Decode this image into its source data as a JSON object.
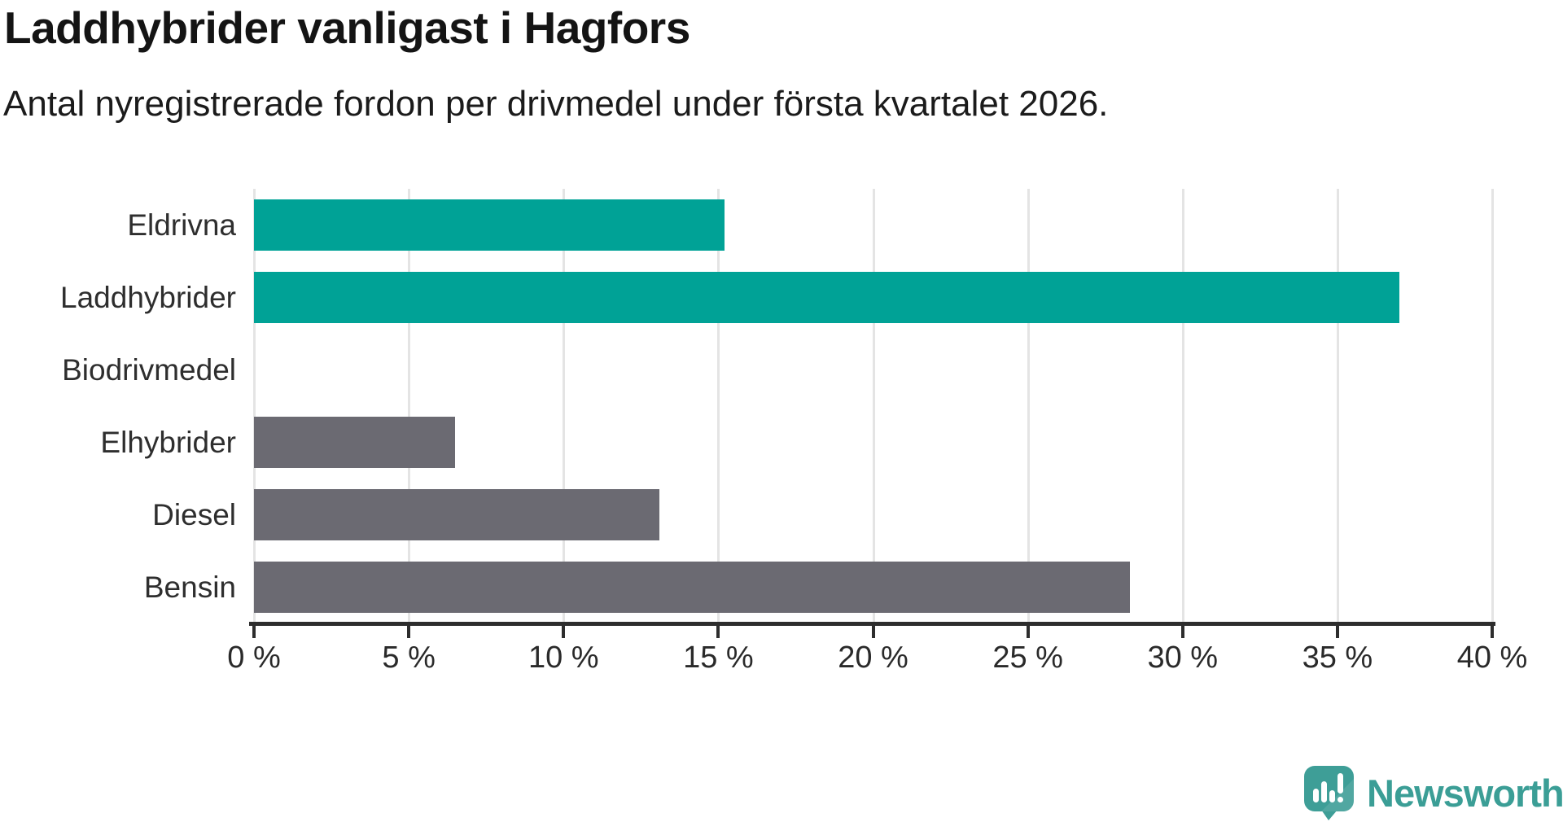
{
  "header": {
    "title": "Laddhybrider vanligast i Hagfors",
    "subtitle": "Antal nyregistrerade fordon per drivmedel under första kvartalet 2026."
  },
  "chart_data": {
    "type": "bar",
    "orientation": "horizontal",
    "title": "Laddhybrider vanligast i Hagfors",
    "subtitle": "Antal nyregistrerade fordon per drivmedel under första kvartalet 2026.",
    "categories": [
      "Eldrivna",
      "Laddhybrider",
      "Biodrivmedel",
      "Elhybrider",
      "Diesel",
      "Bensin"
    ],
    "values": [
      15.2,
      37.0,
      0,
      6.5,
      13.1,
      28.3
    ],
    "unit": "%",
    "series_colors": [
      "#00a296",
      "#00a296",
      "#00a296",
      "#6b6a72",
      "#6b6a72",
      "#6b6a72"
    ],
    "xlim": [
      0,
      40
    ],
    "x_tick_step": 5,
    "x_tick_labels": [
      "0 %",
      "5 %",
      "10 %",
      "15 %",
      "20 %",
      "25 %",
      "30 %",
      "35 %",
      "40 %"
    ],
    "grid": "vertical",
    "legend": "none",
    "highlight_color": "#00a296",
    "base_color": "#6b6a72"
  },
  "branding": {
    "logo_text": "Newsworthy",
    "logo_icon": "speech-bubble-bar-chart-icon",
    "logo_color": "#3b9e96",
    "icon_fill": "#3e9e97"
  },
  "style_colors": {
    "gridline": "#e4e4e4",
    "axis": "#2d2d2d",
    "title_text": "#141414",
    "label_text": "#2e2e2e"
  }
}
